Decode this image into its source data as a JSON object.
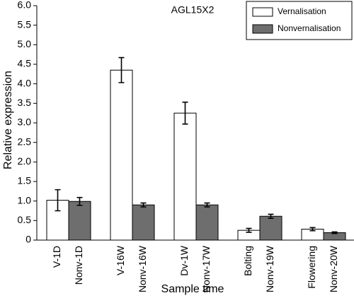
{
  "chart_data": {
    "type": "bar",
    "title": "AGL15X2",
    "x_label": "Sample time",
    "y_label": "Relative expression",
    "series": [
      {
        "name": "Vernalisation",
        "color": "#ffffff",
        "labels": [
          "V-1D",
          "V-16W",
          "Dv-1W",
          "Bolting",
          "Flowering"
        ],
        "values": [
          1.02,
          4.35,
          3.25,
          0.25,
          0.28
        ],
        "errors": [
          0.27,
          0.32,
          0.28,
          0.05,
          0.04
        ]
      },
      {
        "name": "Nonvernalisation",
        "color": "#6e6e6e",
        "labels": [
          "Nonv-1D",
          "Nonv-16W",
          "Nonv-17W",
          "Nonv-19W",
          "Nonv-20W"
        ],
        "values": [
          0.99,
          0.9,
          0.9,
          0.61,
          0.19
        ],
        "errors": [
          0.1,
          0.05,
          0.05,
          0.05,
          0.02
        ]
      }
    ],
    "ylim": [
      0,
      6
    ],
    "yticks": [
      0,
      0.5,
      {
        "value": 1,
        "label": "1.0"
      },
      1.5,
      {
        "value": 2,
        "label": "2.0"
      },
      2.5,
      {
        "value": 3,
        "label": "3.0"
      },
      3.5,
      {
        "value": 4,
        "label": "4.0"
      },
      4.5,
      {
        "value": 5,
        "label": "5.0"
      },
      5.5,
      {
        "value": 6,
        "label": "6.0"
      }
    ],
    "legend": "upper right"
  }
}
